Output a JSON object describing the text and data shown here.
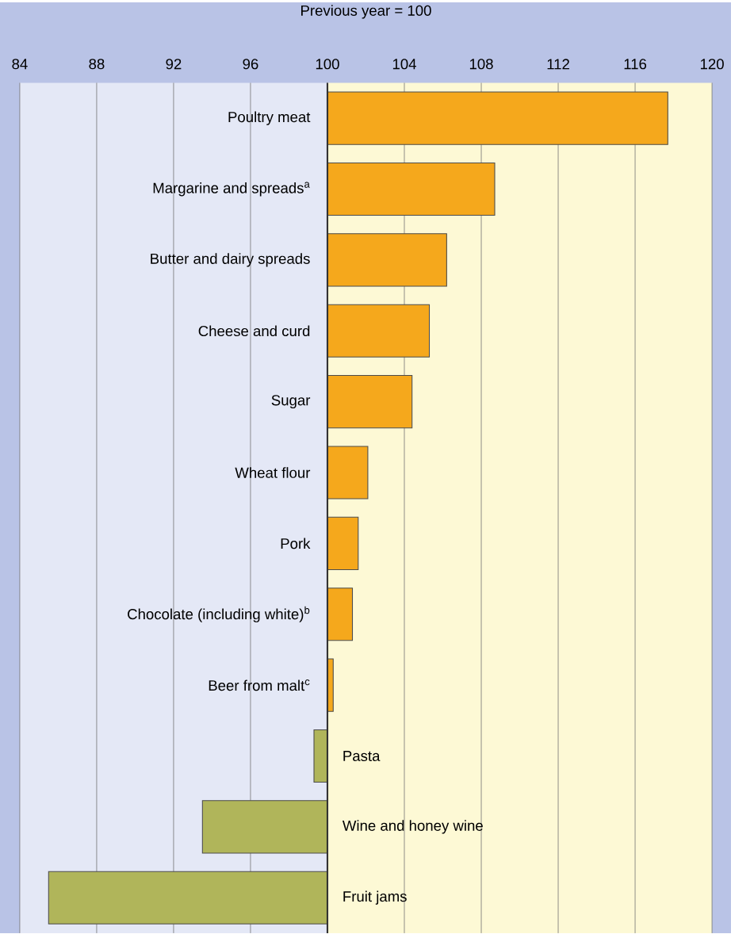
{
  "chart_data": {
    "type": "bar",
    "orientation": "horizontal",
    "xlabel": "Previous year = 100",
    "categories": [
      "Poultry meat",
      "Margarine and spreads$^{a}$",
      "Butter and dairy spreads",
      "Cheese and curd",
      "Sugar",
      "Wheat flour",
      "Pork",
      "Chocolate (including white)$^{b}$",
      "Beer from malt$^{c}$",
      "Pasta",
      "Wine and honey wine",
      "Fruit jams"
    ],
    "base": [
      100,
      100,
      100,
      100,
      100,
      100,
      100,
      100,
      100,
      100,
      100,
      100
    ],
    "values": [
      17.7,
      8.7,
      6.2,
      5.3,
      4.4,
      2.1,
      1.6,
      1.3,
      0.3,
      -0.7,
      -6.5,
      -14.5
    ],
    "colors": [
      "#f5a81c",
      "#f5a81c",
      "#f5a81c",
      "#f5a81c",
      "#f5a81c",
      "#f5a81c",
      "#f5a81c",
      "#f5a81c",
      "#f5a81c",
      "#b0b55a",
      "#b0b55a",
      "#b0b55a"
    ],
    "xlim": [
      84,
      120
    ],
    "xticks": [
      84,
      88,
      92,
      96,
      100,
      104,
      108,
      112,
      116,
      120
    ],
    "grid": "x",
    "bands": [
      {
        "axis": "x",
        "from": 84,
        "to": 100,
        "color": "#e4e8f6"
      },
      {
        "axis": "x",
        "from": 100,
        "to": 120,
        "color": "#fdf9d5"
      }
    ]
  }
}
